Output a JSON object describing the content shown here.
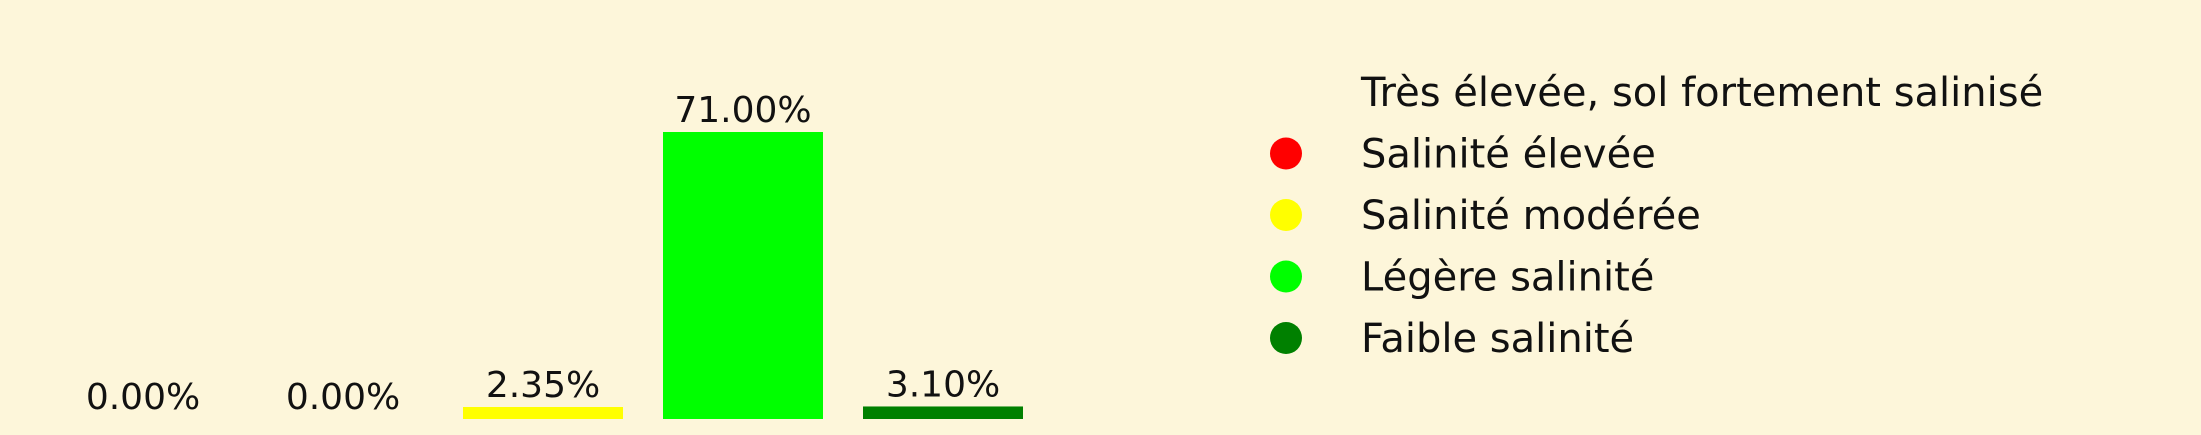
{
  "background": "#fdf6da",
  "chart_data": {
    "type": "bar",
    "title": "",
    "xlabel": "",
    "ylabel": "",
    "ylim": [
      0,
      71
    ],
    "grid": false,
    "legend_position": "right",
    "categories": [
      "Très élevée, sol fortement salinisé",
      "Salinité élevée",
      "Salinité modérée",
      "Légère salinité",
      "Faible salinité"
    ],
    "values": [
      0.0,
      0.0,
      2.35,
      71.0,
      3.1
    ],
    "data_labels": [
      "0.00%",
      "0.00%",
      "2.35%",
      "71.00%",
      "3.10%"
    ],
    "colors": [
      "#8b0000",
      "#ff0000",
      "#ffff00",
      "#00ff00",
      "#008000"
    ],
    "legend": [
      {
        "label": "Très élevée, sol fortement salinisé",
        "color": "#8b0000",
        "marker": false
      },
      {
        "label": "Salinité élevée",
        "color": "#ff0000",
        "marker": true
      },
      {
        "label": "Salinité modérée",
        "color": "#ffff00",
        "marker": true
      },
      {
        "label": "Légère salinité",
        "color": "#00ff00",
        "marker": true
      },
      {
        "label": "Faible salinité",
        "color": "#008000",
        "marker": true
      }
    ]
  }
}
